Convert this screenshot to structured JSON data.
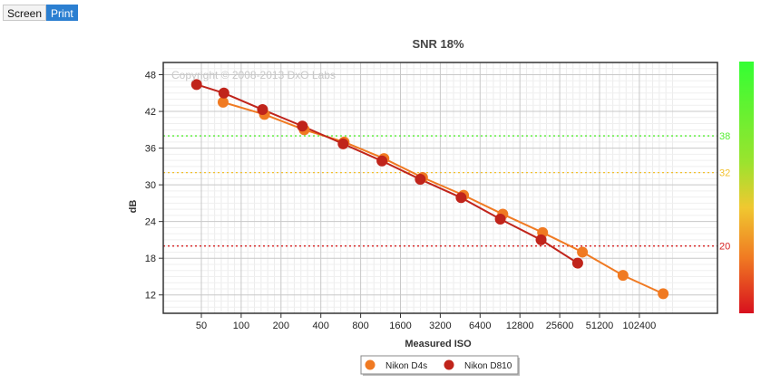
{
  "toolbar": {
    "screen_label": "Screen",
    "print_label": "Print"
  },
  "watermark": "Copyright © 2008-2013 DxO Labs",
  "chart_data": {
    "type": "line",
    "title": "SNR 18%",
    "xlabel": "Measured ISO",
    "ylabel": "dB",
    "x_scale": "log",
    "xticks": [
      "50",
      "100",
      "200",
      "400",
      "800",
      "1600",
      "3200",
      "6400",
      "12800",
      "25600",
      "51200",
      "102400"
    ],
    "yticks": [
      12,
      18,
      24,
      30,
      36,
      42,
      48
    ],
    "ylim": [
      9,
      50
    ],
    "grid": true,
    "legend_position": "bottom-center",
    "series": [
      {
        "name": "Nikon D4s",
        "color": "#f07a22",
        "points": [
          [
            73,
            43.5
          ],
          [
            150,
            41.5
          ],
          [
            300,
            39.0
          ],
          [
            600,
            37.0
          ],
          [
            1200,
            34.3
          ],
          [
            2350,
            31.2
          ],
          [
            4800,
            28.3
          ],
          [
            9500,
            25.2
          ],
          [
            19000,
            22.2
          ],
          [
            38000,
            19.0
          ],
          [
            77000,
            15.2
          ],
          [
            155000,
            12.2
          ]
        ]
      },
      {
        "name": "Nikon D810",
        "color": "#c0241b",
        "points": [
          [
            46,
            46.4
          ],
          [
            74,
            45.0
          ],
          [
            145,
            42.3
          ],
          [
            290,
            39.6
          ],
          [
            590,
            36.7
          ],
          [
            1160,
            33.9
          ],
          [
            2260,
            30.9
          ],
          [
            4600,
            27.9
          ],
          [
            9100,
            24.4
          ],
          [
            18500,
            21.0
          ],
          [
            35000,
            17.2
          ]
        ]
      }
    ],
    "reference_lines": [
      {
        "value": 38,
        "label": "38",
        "color": "#55ee33"
      },
      {
        "value": 32,
        "label": "32",
        "color": "#f2c12e"
      },
      {
        "value": 20,
        "label": "20",
        "color": "#d62020"
      }
    ],
    "color_scale": [
      "#33ff33",
      "#9be32e",
      "#f0c830",
      "#f07a22",
      "#d8101e"
    ]
  }
}
